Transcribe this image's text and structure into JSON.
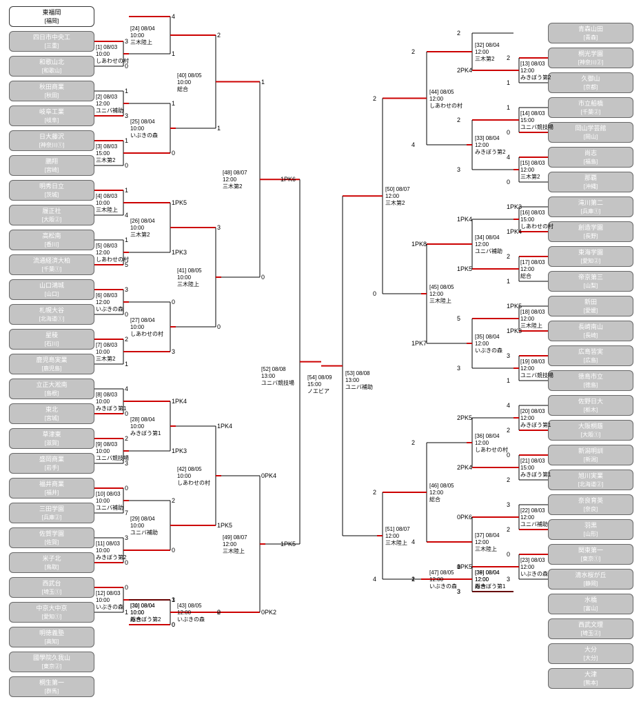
{
  "colors": {
    "winnerLine": "#c00",
    "line": "#000",
    "teamBg": "#c4c4c4",
    "hlBg": "#fff"
  },
  "left": [
    {
      "name": "東福岡",
      "pref": "[福岡]",
      "hl": true
    },
    {
      "name": "四日市中央工",
      "pref": "[三重]"
    },
    {
      "name": "和歌山北",
      "pref": "[和歌山]"
    },
    {
      "name": "秋田商業",
      "pref": "[秋田]"
    },
    {
      "name": "岐阜工業",
      "pref": "[岐阜]"
    },
    {
      "name": "日大藤沢",
      "pref": "[神奈川①]"
    },
    {
      "name": "鵬翔",
      "pref": "[宮崎]"
    },
    {
      "name": "明秀日立",
      "pref": "[茨城]"
    },
    {
      "name": "履正社",
      "pref": "[大阪②]"
    },
    {
      "name": "高松南",
      "pref": "[香川]"
    },
    {
      "name": "流通経済大柏",
      "pref": "[千葉①]"
    },
    {
      "name": "山口鴻城",
      "pref": "[山口]"
    },
    {
      "name": "札幌大谷",
      "pref": "[北海道①]"
    },
    {
      "name": "星稜",
      "pref": "[石川]"
    },
    {
      "name": "鹿児島実業",
      "pref": "[鹿児島]"
    },
    {
      "name": "立正大淞南",
      "pref": "[島根]"
    },
    {
      "name": "東北",
      "pref": "[宮城]"
    },
    {
      "name": "草津東",
      "pref": "[滋賀]"
    },
    {
      "name": "盛岡商業",
      "pref": "[岩手]"
    },
    {
      "name": "福井商業",
      "pref": "[福井]"
    },
    {
      "name": "三田学園",
      "pref": "[兵庫②]"
    },
    {
      "name": "佐賀学園",
      "pref": "[佐賀]"
    },
    {
      "name": "米子北",
      "pref": "[鳥取]"
    },
    {
      "name": "西武台",
      "pref": "[埼玉①]"
    },
    {
      "name": "中京大中京",
      "pref": "[愛知①]"
    },
    {
      "name": "明徳義塾",
      "pref": "[高知]"
    },
    {
      "name": "國學院久我山",
      "pref": "[東京②]"
    },
    {
      "name": "桐生第一",
      "pref": "[群馬]"
    }
  ],
  "right": [
    {
      "name": "青森山田",
      "pref": "[青森]"
    },
    {
      "name": "桐光学園",
      "pref": "[神奈川②]"
    },
    {
      "name": "久御山",
      "pref": "[京都]"
    },
    {
      "name": "市立船橋",
      "pref": "[千葉②]"
    },
    {
      "name": "岡山学芸館",
      "pref": "[岡山]"
    },
    {
      "name": "尚志",
      "pref": "[福島]"
    },
    {
      "name": "那覇",
      "pref": "[沖縄]"
    },
    {
      "name": "滝川第二",
      "pref": "[兵庫①]"
    },
    {
      "name": "創造学園",
      "pref": "[長野]"
    },
    {
      "name": "東海学園",
      "pref": "[愛知②]"
    },
    {
      "name": "帝京第三",
      "pref": "[山梨]"
    },
    {
      "name": "新田",
      "pref": "[愛媛]"
    },
    {
      "name": "長崎南山",
      "pref": "[長崎]"
    },
    {
      "name": "広島皆実",
      "pref": "[広島]"
    },
    {
      "name": "徳島市立",
      "pref": "[徳島]"
    },
    {
      "name": "佐野日大",
      "pref": "[栃木]"
    },
    {
      "name": "大阪桐蔭",
      "pref": "[大阪①]"
    },
    {
      "name": "新潟明訓",
      "pref": "[新潟]"
    },
    {
      "name": "旭川実業",
      "pref": "[北海道②]"
    },
    {
      "name": "奈良育英",
      "pref": "[奈良]"
    },
    {
      "name": "羽黒",
      "pref": "[山形]"
    },
    {
      "name": "関東第一",
      "pref": "[東京①]"
    },
    {
      "name": "清水桜が丘",
      "pref": "[静岡]"
    },
    {
      "name": "水橋",
      "pref": "[富山]"
    },
    {
      "name": "西武文理",
      "pref": "[埼玉②]"
    },
    {
      "name": "大分",
      "pref": "[大分]"
    },
    {
      "name": "大津",
      "pref": "[熊本]"
    }
  ],
  "leftR1": [
    {
      "id": "[1]",
      "t": "08/03 10:00",
      "v": "しあわせの村",
      "s": [
        "3",
        "0"
      ]
    },
    {
      "id": "[2]",
      "t": "08/03 12:00",
      "v": "ユニバ補助",
      "s": [
        "1",
        "3"
      ]
    },
    {
      "id": "[3]",
      "t": "08/03 15:00",
      "v": "三木第2",
      "s": [
        "1",
        "0"
      ]
    },
    {
      "id": "[4]",
      "t": "08/03 10:00",
      "v": "三木陸上",
      "s": [
        "1",
        "4"
      ]
    },
    {
      "id": "[5]",
      "t": "08/03 12:00",
      "v": "しあわせの村",
      "s": [
        "1",
        "5"
      ]
    },
    {
      "id": "[6]",
      "t": "08/03 12:00",
      "v": "いぶきの森",
      "s": [
        "3",
        "0"
      ]
    },
    {
      "id": "[7]",
      "t": "08/03 10:00",
      "v": "三木第2",
      "s": [
        "2",
        "1"
      ]
    },
    {
      "id": "[8]",
      "t": "08/03 10:00",
      "v": "みきぼう第1",
      "s": [
        "4",
        "0"
      ]
    },
    {
      "id": "[9]",
      "t": "08/03 10:00",
      "v": "ユニバ競技場",
      "s": [
        "2",
        "3"
      ]
    },
    {
      "id": "[10]",
      "t": "08/03 10:00",
      "v": "ユニバ補助",
      "s": [
        "0",
        "7"
      ]
    },
    {
      "id": "[11]",
      "t": "08/03 10:00",
      "v": "みきぼう第2",
      "s": [
        "3",
        "0"
      ]
    },
    {
      "id": "[12]",
      "t": "08/03 10:00",
      "v": "いぶきの森",
      "s": [
        "0",
        "1"
      ]
    }
  ],
  "leftR2": [
    {
      "id": "[24]",
      "t": "08/04 10:00",
      "v": "三木陸上",
      "s": [
        "4",
        "1"
      ]
    },
    {
      "id": "[25]",
      "t": "08/04 10:00",
      "v": "いぶきの森",
      "s": [
        "1",
        "0"
      ]
    },
    {
      "id": "[26]",
      "t": "08/04 10:00",
      "v": "三木第2",
      "s": [
        "1PK5",
        "1PK3"
      ]
    },
    {
      "id": "[27]",
      "t": "08/04 10:00",
      "v": "しあわせの村",
      "s": [
        "0",
        "3"
      ]
    },
    {
      "id": "[28]",
      "t": "08/04 10:00",
      "v": "みきぼう第1",
      "s": [
        "1PK4",
        "1PK3"
      ]
    },
    {
      "id": "[29]",
      "t": "08/04 10:00",
      "v": "ユニバ補助",
      "s": [
        "2",
        "0"
      ]
    },
    {
      "id": "[30]",
      "t": "08/04 10:00",
      "v": "総合",
      "s": [
        "1",
        "0"
      ]
    },
    {
      "id": "[31]",
      "t": "08/04 10:00",
      "v": "みきぼう第2",
      "s": [
        "3",
        "0"
      ]
    }
  ],
  "leftR3": [
    {
      "id": "[40]",
      "t": "08/05 10:00",
      "v": "総合",
      "s": [
        "2",
        "1"
      ]
    },
    {
      "id": "[41]",
      "t": "08/05 10:00",
      "v": "三木陸上",
      "s": [
        "3",
        "0"
      ]
    },
    {
      "id": "[42]",
      "t": "08/05 10:00",
      "v": "しあわせの村",
      "s": [
        "1PK4",
        "1PK5"
      ]
    },
    {
      "id": "[43]",
      "t": "08/05 12:00",
      "v": "いぶきの森",
      "s": [
        "2",
        "0"
      ]
    }
  ],
  "leftR4": [
    {
      "id": "[48]",
      "t": "08/07 12:00",
      "v": "三木第2",
      "s": [
        "1",
        "0"
      ]
    },
    {
      "id": "[49]",
      "t": "08/07 12:00",
      "v": "三木陸上",
      "s": [
        "0PK4",
        "0PK2"
      ]
    }
  ],
  "leftR5": {
    "id": "[52]",
    "t": "08/08 13:00",
    "v": "ユニバ競技場",
    "s": [
      "1PK6",
      "1PK5"
    ]
  },
  "final": {
    "id": "[54]",
    "t": "08/09 15:00",
    "v": "ノエビア"
  },
  "rightR5": {
    "id": "[53]",
    "t": "08/08 13:00",
    "v": "ユニバ補助",
    "s": [
      "2",
      "2"
    ]
  },
  "rightR4": [
    {
      "id": "[50]",
      "t": "08/07 12:00",
      "v": "三木第2",
      "s": [
        "2",
        "0"
      ]
    },
    {
      "id": "[51]",
      "t": "08/07 12:00",
      "v": "三木陸上",
      "s": [
        "2",
        "4"
      ]
    }
  ],
  "rightR3": [
    {
      "id": "[44]",
      "t": "08/05 12:00",
      "v": "しあわせの村",
      "s": [
        "2",
        "4"
      ]
    },
    {
      "id": "[45]",
      "t": "08/05 12:00",
      "v": "三木陸上",
      "s": [
        "1PK8",
        "1PK7"
      ]
    },
    {
      "id": "[46]",
      "t": "08/05 12:00",
      "v": "総合",
      "s": [
        "2",
        "4"
      ]
    },
    {
      "id": "[47]",
      "t": "08/05 12:00",
      "v": "いぶきの森",
      "s": [
        "2",
        "1"
      ]
    }
  ],
  "rightR2": [
    {
      "id": "[32]",
      "t": "08/04 12:00",
      "v": "三木第2",
      "s": [
        "2",
        "2PK4"
      ],
      "pk": "2PK5"
    },
    {
      "id": "[33]",
      "t": "08/04 12:00",
      "v": "みきぼう第2",
      "s": [
        "2",
        "3"
      ]
    },
    {
      "id": "[34]",
      "t": "08/04 12:00",
      "v": "ユニバ補助",
      "s": [
        "1PK4",
        "1PK5"
      ]
    },
    {
      "id": "[35]",
      "t": "08/04 12:00",
      "v": "いぶきの森",
      "s": [
        "5",
        "3"
      ]
    },
    {
      "id": "[36]",
      "t": "08/04 12:00",
      "v": "しあわせの村",
      "s": [
        "2PK5",
        "2PK4"
      ]
    },
    {
      "id": "[37]",
      "t": "08/04 12:00",
      "v": "三木陸上",
      "s": [
        "0PK6",
        "0PK5"
      ]
    },
    {
      "id": "[38]",
      "t": "08/04 12:00",
      "v": "総合",
      "s": [
        "3",
        "3"
      ]
    },
    {
      "id": "[39]",
      "t": "08/04 12:00",
      "v": "みきぼう第1",
      "s": [
        "1",
        "3"
      ]
    }
  ],
  "rightR1": [
    {
      "id": "[13]",
      "t": "08/03 12:00",
      "v": "みきぼう第2",
      "s": [
        "2",
        "1"
      ]
    },
    {
      "id": "[14]",
      "t": "08/03 15:00",
      "v": "ユニバ競技場",
      "s": [
        "1",
        "0"
      ]
    },
    {
      "id": "[15]",
      "t": "08/03 12:00",
      "v": "三木第2",
      "s": [
        "4",
        "0"
      ]
    },
    {
      "id": "[16]",
      "t": "08/03 15:00",
      "v": "しあわせの村",
      "s": [
        "1PK3",
        "1PK4"
      ]
    },
    {
      "id": "[17]",
      "t": "08/03 12:00",
      "v": "総合",
      "s": [
        "2",
        "1"
      ]
    },
    {
      "id": "[18]",
      "t": "08/03 12:00",
      "v": "三木陸上",
      "s": [
        "1PK5",
        "1PK3"
      ]
    },
    {
      "id": "[19]",
      "t": "08/03 12:00",
      "v": "ユニバ競技場",
      "s": [
        "3",
        "1"
      ]
    },
    {
      "id": "[20]",
      "t": "08/03 12:00",
      "v": "みきぼう第1",
      "s": [
        "4",
        "2"
      ]
    },
    {
      "id": "[21]",
      "t": "08/03 15:00",
      "v": "みきぼう第1",
      "s": [
        "0",
        "2"
      ]
    },
    {
      "id": "[22]",
      "t": "08/03 12:00",
      "v": "ユニバ補助",
      "s": [
        "3",
        "2"
      ]
    },
    {
      "id": "[23]",
      "t": "08/03 12:00",
      "v": "いぶきの森",
      "s": [
        "0",
        "3"
      ]
    }
  ]
}
